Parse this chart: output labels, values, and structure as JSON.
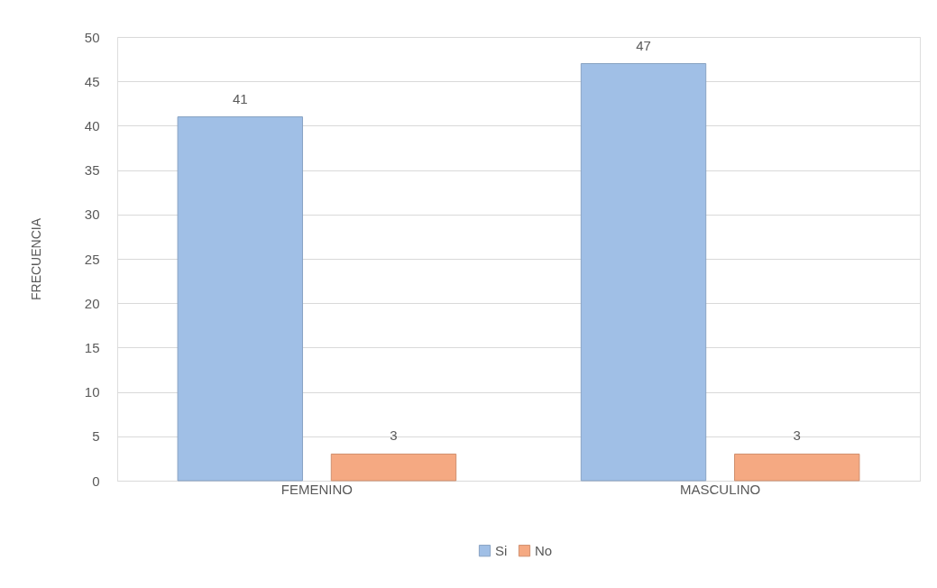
{
  "chart_data": {
    "type": "bar",
    "ylabel": "FRECUENCIA",
    "categories": [
      "FEMENINO",
      "MASCULINO"
    ],
    "series": [
      {
        "name": "Si",
        "color": "#a0bfe6",
        "values": [
          41,
          47
        ]
      },
      {
        "name": "No",
        "color": "#f5a982",
        "values": [
          3,
          3
        ]
      }
    ],
    "ylim": [
      0,
      50
    ],
    "yticks": [
      0,
      5,
      10,
      15,
      20,
      25,
      30,
      35,
      40,
      45,
      50
    ],
    "grid": "y",
    "legend": "bottom",
    "data_labels": true
  }
}
